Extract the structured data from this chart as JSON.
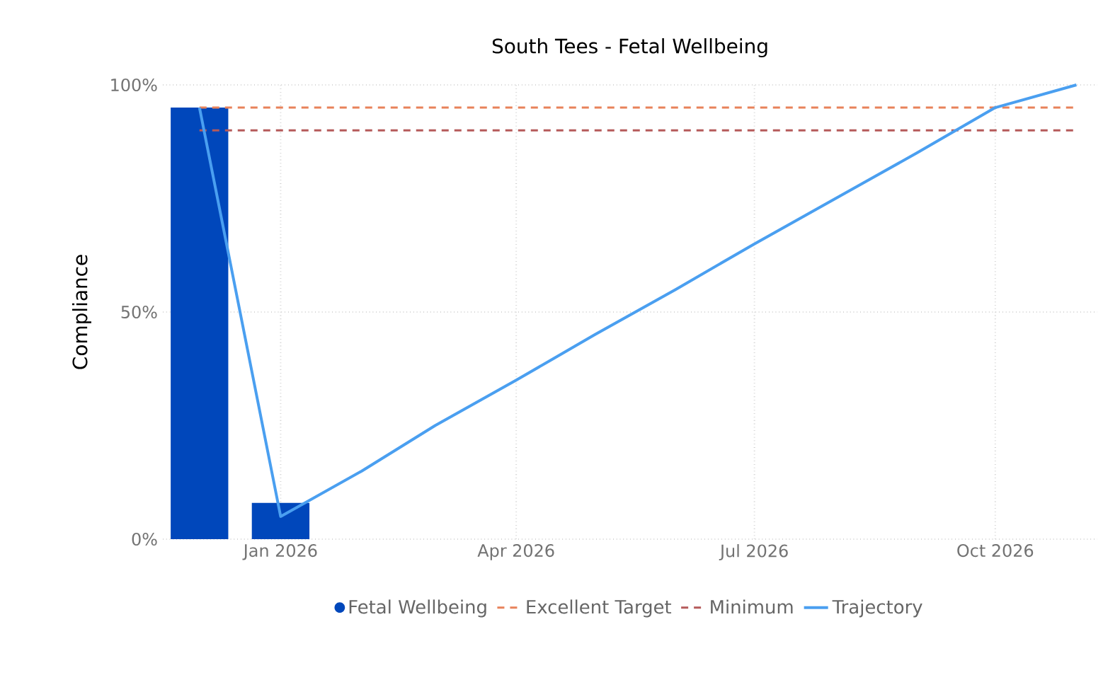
{
  "chart_data": {
    "type": "bar",
    "title": "South Tees - Fetal Wellbeing",
    "ylabel": "Compliance",
    "series": [
      {
        "name": "Fetal Wellbeing",
        "color": "#0047bb",
        "x": [
          "2025-12",
          "2026-01"
        ],
        "values": [
          95,
          8
        ]
      },
      {
        "name": "Trajectory",
        "type": "line",
        "color": "#4a9ff0",
        "x": [
          "2025-12",
          "2026-01",
          "2026-02",
          "2026-03",
          "2026-04",
          "2026-05",
          "2026-06",
          "2026-07",
          "2026-08",
          "2026-09",
          "2026-10",
          "2026-11"
        ],
        "values": [
          95,
          5,
          15,
          25,
          35,
          45,
          55,
          65,
          75,
          85,
          95,
          100
        ]
      }
    ],
    "ref_lines": [
      {
        "axis": "y",
        "value": 95,
        "label": "Excellent Target",
        "color": "#e8825a",
        "line_style": "dashed"
      },
      {
        "axis": "y",
        "value": 90,
        "label": "Minimum",
        "color": "#b55a5a",
        "line_style": "dashed"
      }
    ],
    "xlim": [
      "2025-11-17",
      "2026-11-09"
    ],
    "xticks": [
      {
        "value": "2026-01",
        "label": "Jan 2026"
      },
      {
        "value": "2026-04",
        "label": "Apr 2026"
      },
      {
        "value": "2026-07",
        "label": "Jul 2026"
      },
      {
        "value": "2026-10",
        "label": "Oct 2026"
      }
    ],
    "ylim": [
      0,
      100
    ],
    "yticks": [
      {
        "value": 0,
        "label": "0%"
      },
      {
        "value": 50,
        "label": "50%"
      },
      {
        "value": 100,
        "label": "100%"
      }
    ],
    "grid": true,
    "legend": "bottom",
    "marker": "none"
  }
}
